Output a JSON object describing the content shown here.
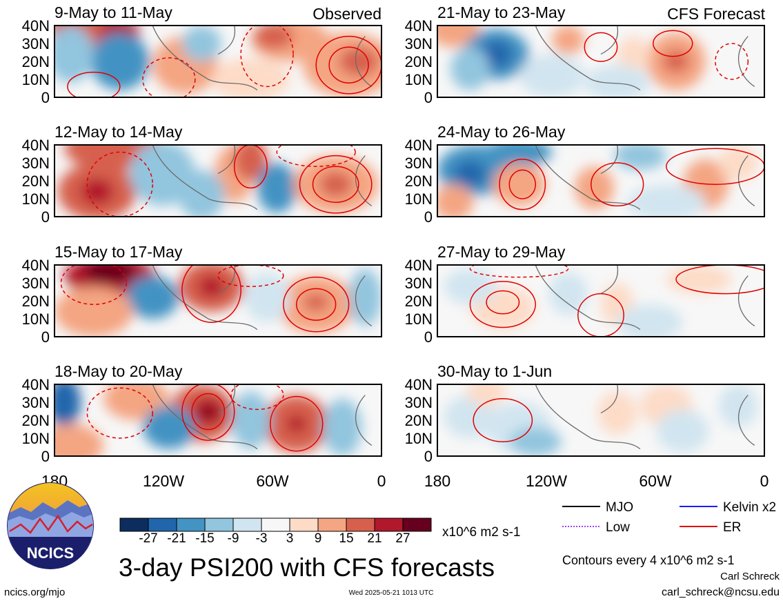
{
  "chart_data": {
    "type": "heatmap",
    "title": "3-day PSI200 with CFS forecasts",
    "units": "x10^6 m2 s-1",
    "contour_note": "Contours every 4 x10^6 m2 s-1",
    "xlim": [
      "180",
      "0"
    ],
    "ylim": [
      0,
      40
    ],
    "x_ticks": [
      "180",
      "120W",
      "60W",
      "0"
    ],
    "y_ticks": [
      "40N",
      "30N",
      "20N",
      "10N",
      "0"
    ],
    "column_labels": {
      "left": "Observed",
      "right": "CFS Forecast"
    },
    "panels": [
      {
        "label": "9-May to 11-May",
        "column": "left",
        "row": 0
      },
      {
        "label": "12-May to 14-May",
        "column": "left",
        "row": 1
      },
      {
        "label": "15-May to 17-May",
        "column": "left",
        "row": 2
      },
      {
        "label": "18-May to 20-May",
        "column": "left",
        "row": 3
      },
      {
        "label": "21-May to 23-May",
        "column": "right",
        "row": 0
      },
      {
        "label": "24-May to 26-May",
        "column": "right",
        "row": 1
      },
      {
        "label": "27-May to 29-May",
        "column": "right",
        "row": 2
      },
      {
        "label": "30-May to 1-Jun",
        "column": "right",
        "row": 3
      }
    ],
    "colorbar": {
      "ticks": [
        "-27",
        "-21",
        "-15",
        "-9",
        "-3",
        "3",
        "9",
        "15",
        "21",
        "27"
      ],
      "colors": [
        "#0d2d5e",
        "#2166ac",
        "#4393c3",
        "#92c5de",
        "#d1e5f0",
        "#f7f7f7",
        "#fddbc7",
        "#f4a582",
        "#d6604d",
        "#b2182b",
        "#67001f"
      ]
    },
    "legend": [
      {
        "label": "MJO",
        "color": "#000000",
        "style": "solid"
      },
      {
        "label": "Kelvin x2",
        "color": "#1a1aff",
        "style": "solid"
      },
      {
        "label": "Low",
        "color": "#a040ff",
        "style": "dotted"
      },
      {
        "label": "ER",
        "color": "#e00000",
        "style": "solid"
      }
    ]
  },
  "logo": {
    "text": "NCICS"
  },
  "footer": {
    "url": "ncics.org/mjo",
    "timestamp": "Wed 2025-05-21 1013 UTC",
    "author": "Carl Schreck",
    "email": "carl_schreck@ncsu.edu"
  }
}
